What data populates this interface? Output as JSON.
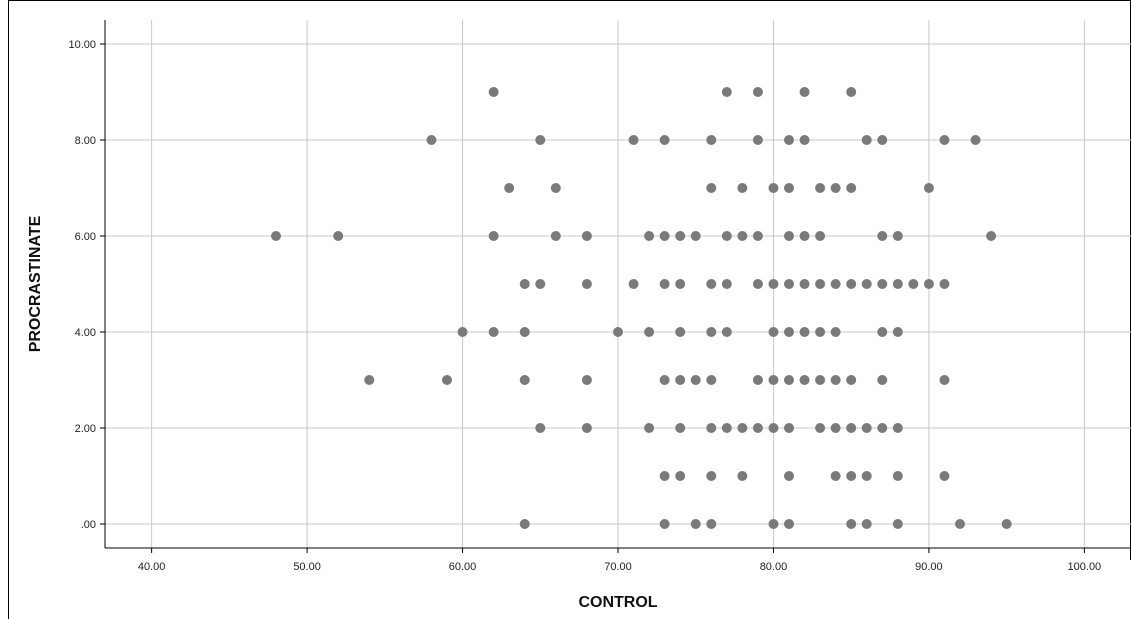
{
  "chart_data": {
    "type": "scatter",
    "title": "",
    "xlabel": "CONTROL",
    "ylabel": "PROCRASTINATE",
    "xlim": [
      37,
      103
    ],
    "ylim": [
      -0.5,
      10.5
    ],
    "x_ticks": [
      40,
      50,
      60,
      70,
      80,
      90,
      100
    ],
    "x_tick_labels": [
      "40.00",
      "50.00",
      "60.00",
      "70.00",
      "80.00",
      "90.00",
      "100.00"
    ],
    "y_ticks": [
      0,
      2,
      4,
      6,
      8,
      10
    ],
    "y_tick_labels": [
      ".00",
      "2.00",
      "4.00",
      "6.00",
      "8.00",
      "10.00"
    ],
    "grid": true,
    "marker_color": "#7a7a7a",
    "grid_color": "#c8c8c8",
    "points": [
      [
        62,
        9
      ],
      [
        77,
        9
      ],
      [
        79,
        9
      ],
      [
        82,
        9
      ],
      [
        85,
        9
      ],
      [
        58,
        8
      ],
      [
        65,
        8
      ],
      [
        71,
        8
      ],
      [
        73,
        8
      ],
      [
        76,
        8
      ],
      [
        79,
        8
      ],
      [
        81,
        8
      ],
      [
        82,
        8
      ],
      [
        86,
        8
      ],
      [
        87,
        8
      ],
      [
        91,
        8
      ],
      [
        93,
        8
      ],
      [
        63,
        7
      ],
      [
        66,
        7
      ],
      [
        76,
        7
      ],
      [
        78,
        7
      ],
      [
        80,
        7
      ],
      [
        81,
        7
      ],
      [
        83,
        7
      ],
      [
        84,
        7
      ],
      [
        85,
        7
      ],
      [
        90,
        7
      ],
      [
        48,
        6
      ],
      [
        52,
        6
      ],
      [
        62,
        6
      ],
      [
        66,
        6
      ],
      [
        68,
        6
      ],
      [
        72,
        6
      ],
      [
        73,
        6
      ],
      [
        74,
        6
      ],
      [
        75,
        6
      ],
      [
        77,
        6
      ],
      [
        78,
        6
      ],
      [
        79,
        6
      ],
      [
        81,
        6
      ],
      [
        82,
        6
      ],
      [
        83,
        6
      ],
      [
        87,
        6
      ],
      [
        88,
        6
      ],
      [
        94,
        6
      ],
      [
        64,
        5
      ],
      [
        65,
        5
      ],
      [
        68,
        5
      ],
      [
        71,
        5
      ],
      [
        73,
        5
      ],
      [
        74,
        5
      ],
      [
        76,
        5
      ],
      [
        77,
        5
      ],
      [
        79,
        5
      ],
      [
        80,
        5
      ],
      [
        81,
        5
      ],
      [
        82,
        5
      ],
      [
        83,
        5
      ],
      [
        84,
        5
      ],
      [
        85,
        5
      ],
      [
        86,
        5
      ],
      [
        87,
        5
      ],
      [
        88,
        5
      ],
      [
        89,
        5
      ],
      [
        90,
        5
      ],
      [
        91,
        5
      ],
      [
        60,
        4
      ],
      [
        62,
        4
      ],
      [
        64,
        4
      ],
      [
        70,
        4
      ],
      [
        72,
        4
      ],
      [
        74,
        4
      ],
      [
        76,
        4
      ],
      [
        77,
        4
      ],
      [
        80,
        4
      ],
      [
        81,
        4
      ],
      [
        82,
        4
      ],
      [
        83,
        4
      ],
      [
        84,
        4
      ],
      [
        87,
        4
      ],
      [
        88,
        4
      ],
      [
        54,
        3
      ],
      [
        59,
        3
      ],
      [
        64,
        3
      ],
      [
        68,
        3
      ],
      [
        73,
        3
      ],
      [
        74,
        3
      ],
      [
        75,
        3
      ],
      [
        76,
        3
      ],
      [
        79,
        3
      ],
      [
        80,
        3
      ],
      [
        81,
        3
      ],
      [
        82,
        3
      ],
      [
        83,
        3
      ],
      [
        84,
        3
      ],
      [
        85,
        3
      ],
      [
        87,
        3
      ],
      [
        91,
        3
      ],
      [
        65,
        2
      ],
      [
        68,
        2
      ],
      [
        72,
        2
      ],
      [
        74,
        2
      ],
      [
        76,
        2
      ],
      [
        77,
        2
      ],
      [
        78,
        2
      ],
      [
        79,
        2
      ],
      [
        80,
        2
      ],
      [
        81,
        2
      ],
      [
        83,
        2
      ],
      [
        84,
        2
      ],
      [
        85,
        2
      ],
      [
        86,
        2
      ],
      [
        87,
        2
      ],
      [
        88,
        2
      ],
      [
        73,
        1
      ],
      [
        74,
        1
      ],
      [
        76,
        1
      ],
      [
        78,
        1
      ],
      [
        81,
        1
      ],
      [
        84,
        1
      ],
      [
        85,
        1
      ],
      [
        86,
        1
      ],
      [
        88,
        1
      ],
      [
        91,
        1
      ],
      [
        64,
        0
      ],
      [
        73,
        0
      ],
      [
        75,
        0
      ],
      [
        76,
        0
      ],
      [
        80,
        0
      ],
      [
        81,
        0
      ],
      [
        85,
        0
      ],
      [
        86,
        0
      ],
      [
        88,
        0
      ],
      [
        92,
        0
      ],
      [
        95,
        0
      ]
    ]
  }
}
